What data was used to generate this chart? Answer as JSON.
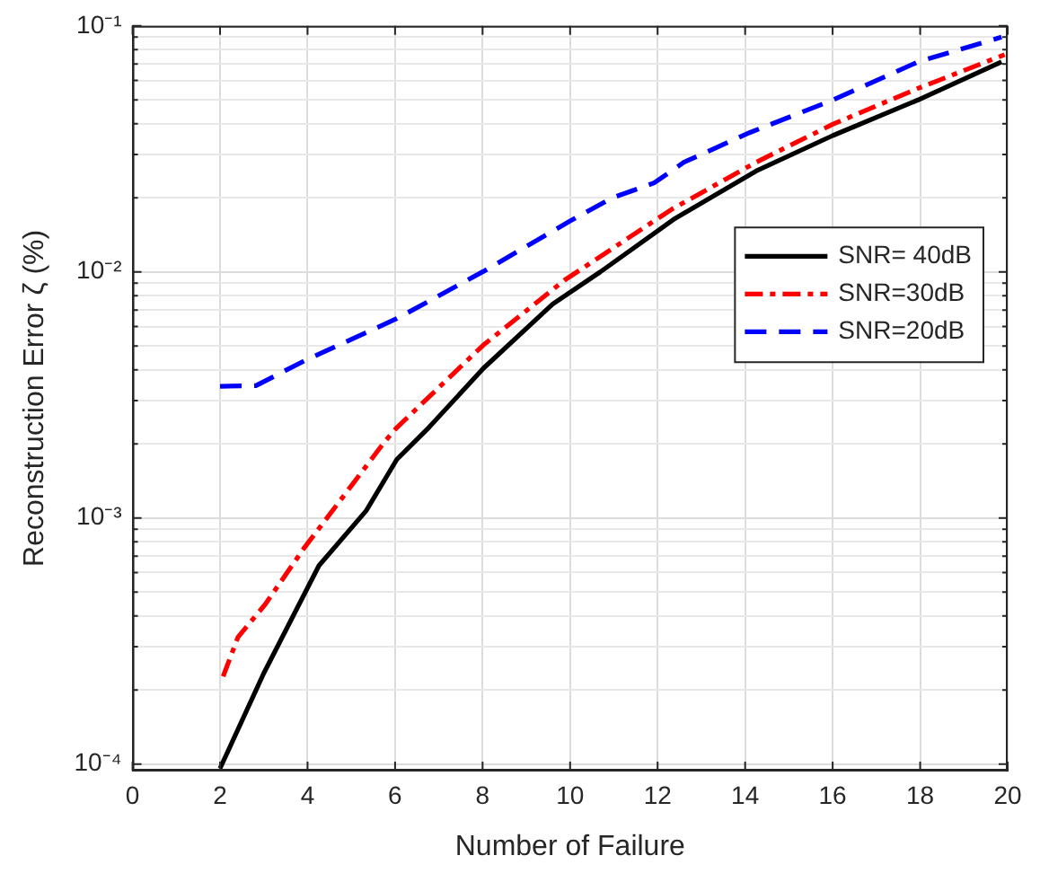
{
  "chart_data": {
    "type": "line",
    "xlabel": "Number of Failure",
    "ylabel": "Reconstruction Error ζ (%)",
    "log": "y",
    "grid": true,
    "legend": "right",
    "marker": "none",
    "xlim": [
      0,
      20
    ],
    "xticks": [
      0,
      2,
      4,
      6,
      8,
      10,
      12,
      14,
      16,
      18,
      20
    ],
    "ylim": [
      9.4e-05,
      0.1
    ],
    "yticks": [
      {
        "value": 0.0001,
        "label": "10⁻⁴"
      },
      {
        "value": 0.0002,
        "label": null
      },
      {
        "value": 0.0003,
        "label": null
      },
      {
        "value": 0.0004,
        "label": null
      },
      {
        "value": 0.0005,
        "label": null
      },
      {
        "value": 0.0006,
        "label": null
      },
      {
        "value": 0.0007,
        "label": null
      },
      {
        "value": 0.0008,
        "label": null
      },
      {
        "value": 0.0009,
        "label": null
      },
      {
        "value": 0.001,
        "label": "10⁻³"
      },
      {
        "value": 0.002,
        "label": null
      },
      {
        "value": 0.003,
        "label": null
      },
      {
        "value": 0.004,
        "label": null
      },
      {
        "value": 0.005,
        "label": null
      },
      {
        "value": 0.006,
        "label": null
      },
      {
        "value": 0.007,
        "label": null
      },
      {
        "value": 0.008,
        "label": null
      },
      {
        "value": 0.009,
        "label": null
      },
      {
        "value": 0.01,
        "label": "10⁻²"
      },
      {
        "value": 0.02,
        "label": null
      },
      {
        "value": 0.03,
        "label": null
      },
      {
        "value": 0.04,
        "label": null
      },
      {
        "value": 0.05,
        "label": null
      },
      {
        "value": 0.06,
        "label": null
      },
      {
        "value": 0.07,
        "label": null
      },
      {
        "value": 0.08,
        "label": null
      },
      {
        "value": 0.09,
        "label": null
      },
      {
        "value": 0.1,
        "label": "10⁻¹"
      }
    ],
    "series": [
      {
        "name": "SNR= 40dB",
        "color": "#000000",
        "line_style": "solid",
        "x": [
          2,
          3,
          4.26,
          5.34,
          6.04,
          6.78,
          8.02,
          9.6,
          10.69,
          12.4,
          14.25,
          16,
          17.95,
          19.86
        ],
        "values": [
          9.6e-05,
          0.000234,
          0.00064,
          0.00107,
          0.00173,
          0.00234,
          0.00406,
          0.0074,
          0.01,
          0.0165,
          0.0257,
          0.0358,
          0.05,
          0.0714
        ]
      },
      {
        "name": "SNR=30dB",
        "color": "#ff0000",
        "line_style": "dashdot",
        "x": [
          2.07,
          2.41,
          3.03,
          3.91,
          4.67,
          5.76,
          6.04,
          8.02,
          9.87,
          12.33,
          14.25,
          16,
          17.95,
          19.93
        ],
        "values": [
          0.000227,
          0.000328,
          0.000445,
          0.00075,
          0.00113,
          0.00204,
          0.00233,
          0.00505,
          0.00925,
          0.018,
          0.0279,
          0.0398,
          0.0557,
          0.0764
        ]
      },
      {
        "name": "SNR=20dB",
        "color": "#0000ff",
        "line_style": "dashed",
        "x": [
          2,
          2.82,
          3.98,
          6.04,
          8.02,
          10,
          10.96,
          11.92,
          12.6,
          14.1,
          16,
          17.95,
          19.86
        ],
        "values": [
          0.00343,
          0.00345,
          0.0044,
          0.00646,
          0.01005,
          0.0161,
          0.02,
          0.023,
          0.0279,
          0.0368,
          0.0499,
          0.0714,
          0.09
        ]
      }
    ]
  }
}
